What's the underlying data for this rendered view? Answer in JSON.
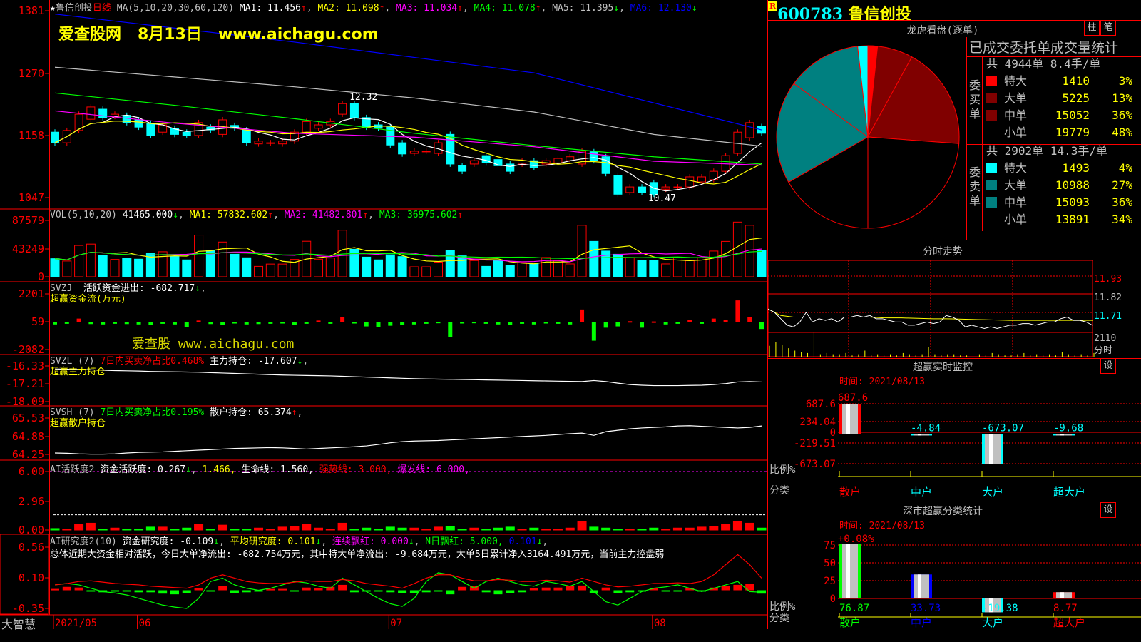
{
  "header": {
    "star": "★",
    "stock_name": "鲁信创投",
    "period": "日线",
    "ma_params": "MA(5,10,20,30,60,120)",
    "ma1": "MA1: 11.456",
    "ma2": "MA2: 11.098",
    "ma3": "MA3: 11.034",
    "ma4": "MA4: 11.078",
    "ma5": "MA5: 11.395",
    "ma6": "MA6: 12.130",
    "up": "↑",
    "down": "↓"
  },
  "watermark": {
    "site": "爱查股网",
    "date": "8月13日",
    "url": "www.aichagu.com",
    "site2": "爱查股",
    "url2": "www.aichagu.com"
  },
  "main_axis": {
    "ticks": [
      "1381",
      "1270",
      "1158",
      "1047"
    ],
    "ylim": [
      10.47,
      13.81
    ],
    "annot_high": "12.32",
    "annot_low": "10.47"
  },
  "candles": [
    [
      11.64,
      11.45
    ],
    [
      11.45,
      11.67
    ],
    [
      11.67,
      11.96
    ],
    [
      11.87,
      12.09
    ],
    [
      12.05,
      11.9
    ],
    [
      11.92,
      11.96
    ],
    [
      11.94,
      11.81
    ],
    [
      11.86,
      11.73
    ],
    [
      11.8,
      11.58
    ],
    [
      11.64,
      11.77
    ],
    [
      11.71,
      11.6
    ],
    [
      11.64,
      11.58
    ],
    [
      11.58,
      11.81
    ],
    [
      11.73,
      11.68
    ],
    [
      11.6,
      11.86
    ],
    [
      11.76,
      11.71
    ],
    [
      11.68,
      11.45
    ],
    [
      11.43,
      11.48
    ],
    [
      11.45,
      11.45
    ],
    [
      11.43,
      11.48
    ],
    [
      11.48,
      11.64
    ],
    [
      11.64,
      11.83
    ],
    [
      11.71,
      11.77
    ],
    [
      11.77,
      11.83
    ],
    [
      11.96,
      12.15
    ],
    [
      12.15,
      11.9
    ],
    [
      11.9,
      11.73
    ],
    [
      11.77,
      11.71
    ],
    [
      11.73,
      11.41
    ],
    [
      11.45,
      11.25
    ],
    [
      11.26,
      11.3
    ],
    [
      11.3,
      11.3
    ],
    [
      11.26,
      11.45
    ],
    [
      11.6,
      11.07
    ],
    [
      11.04,
      10.94
    ],
    [
      11.07,
      11.13
    ],
    [
      11.22,
      11.09
    ],
    [
      11.15,
      11.04
    ],
    [
      11.07,
      10.94
    ],
    [
      11.07,
      11.13
    ],
    [
      11.13,
      11.01
    ],
    [
      11.07,
      11.13
    ],
    [
      11.09,
      11.17
    ],
    [
      11.13,
      11.2
    ],
    [
      11.07,
      11.3
    ],
    [
      11.29,
      11.13
    ],
    [
      11.2,
      10.9
    ],
    [
      10.87,
      10.53
    ],
    [
      10.56,
      10.66
    ],
    [
      10.66,
      10.56
    ],
    [
      10.74,
      10.53
    ],
    [
      10.62,
      10.66
    ],
    [
      10.66,
      10.66
    ],
    [
      10.66,
      10.84
    ],
    [
      10.75,
      10.84
    ],
    [
      10.79,
      10.94
    ],
    [
      10.94,
      11.22
    ],
    [
      11.26,
      11.64
    ],
    [
      11.54,
      11.81
    ],
    [
      11.74,
      11.62
    ]
  ],
  "ma_lines": {
    "ma20": [
      [
        0,
        12.02
      ],
      [
        10,
        11.8
      ],
      [
        20,
        11.62
      ],
      [
        30,
        11.55
      ],
      [
        40,
        11.38
      ],
      [
        50,
        11.12
      ],
      [
        59,
        11.05
      ]
    ],
    "ma30": [
      [
        0,
        12.34
      ],
      [
        10,
        12.12
      ],
      [
        20,
        11.88
      ],
      [
        30,
        11.62
      ],
      [
        40,
        11.4
      ],
      [
        50,
        11.2
      ],
      [
        59,
        11.07
      ]
    ],
    "ma60": [
      [
        0,
        12.8
      ],
      [
        20,
        12.45
      ],
      [
        30,
        12.25
      ],
      [
        40,
        12.0
      ],
      [
        50,
        11.6
      ],
      [
        59,
        11.39
      ]
    ],
    "ma120": [
      [
        0,
        13.75
      ],
      [
        20,
        13.25
      ],
      [
        40,
        12.7
      ],
      [
        59,
        11.68
      ]
    ]
  },
  "colors": {
    "up": "#ff0000",
    "down": "#00ffff",
    "ma1": "#ffffff",
    "ma2": "#ffff00",
    "ma3": "#ff00ff",
    "ma4": "#00ff00",
    "ma5": "#c0c0c0",
    "ma6": "#0000ff",
    "grid": "#ff0000"
  },
  "volume": {
    "label": "VOL(5,10,20)",
    "value": "41465.000",
    "ma1": "MA1: 57832.602",
    "ma2": "MA2: 41482.801",
    "ma3": "MA3: 36975.602",
    "ticks": [
      "87579",
      "43249",
      "0"
    ],
    "ylim": [
      0,
      87579
    ],
    "values": [
      28100,
      24500,
      48700,
      50800,
      33500,
      27000,
      28800,
      27400,
      36000,
      38900,
      31700,
      26300,
      64800,
      40700,
      54000,
      35000,
      29600,
      16200,
      19800,
      19800,
      27000,
      55200,
      27400,
      29200,
      72400,
      42800,
      30600,
      26300,
      34200,
      31400,
      15500,
      15500,
      22700,
      40700,
      32500,
      25200,
      16200,
      25000,
      18000,
      22000,
      20000,
      30000,
      25000,
      20000,
      80000,
      55000,
      40000,
      35000,
      30000,
      25000,
      25000,
      20000,
      30000,
      25000,
      30000,
      40000,
      55000,
      85000,
      80000,
      41465
    ]
  },
  "svzj": {
    "label": "SVZJ",
    "desc": "活跃资金进出: -682.717",
    "sub": "超赢资金流(万元)",
    "ticks": [
      "2201",
      "59",
      "-2082"
    ],
    "ylim": [
      -2082,
      2201
    ],
    "values": [
      -150,
      -100,
      300,
      -120,
      -150,
      -100,
      -120,
      -150,
      -200,
      -100,
      -150,
      -350,
      150,
      -120,
      -200,
      -80,
      -150,
      -120,
      -100,
      -80,
      -200,
      -100,
      150,
      -100,
      400,
      -80,
      -300,
      -350,
      -250,
      -200,
      -150,
      -100,
      -60,
      -1100,
      -80,
      -60,
      -100,
      -150,
      -200,
      -100,
      -150,
      -80,
      -100,
      -150,
      1000,
      -1400,
      -400,
      -300,
      100,
      -400,
      80,
      -150,
      -100,
      200,
      -100,
      300,
      200,
      1700,
      400,
      -500
    ]
  },
  "svzl": {
    "label": "SVZL (7)",
    "ratio": "7日内买卖净占比0.468%",
    "hold": "主力持仓: -17.607",
    "sub": "超赢主力持仓",
    "ticks": [
      "-16.33",
      "-17.21",
      "-18.09"
    ],
    "ylim": [
      -18.09,
      -16.33
    ],
    "values": [
      -16.48,
      -16.49,
      -16.5,
      -16.52,
      -16.54,
      -16.56,
      -16.57,
      -16.58,
      -16.6,
      -16.61,
      -16.62,
      -16.63,
      -16.64,
      -16.66,
      -16.68,
      -16.7,
      -16.72,
      -16.74,
      -16.76,
      -16.78,
      -16.79,
      -16.8,
      -16.81,
      -16.82,
      -16.84,
      -16.86,
      -16.88,
      -16.9,
      -16.92,
      -16.94,
      -16.96,
      -16.97,
      -16.98,
      -16.99,
      -17.0,
      -17.01,
      -17.02,
      -17.03,
      -17.04,
      -17.05,
      -17.06,
      -17.07,
      -17.08,
      -17.09,
      -17.1,
      -17.05,
      -17.1,
      -17.18,
      -17.25,
      -17.28,
      -17.3,
      -17.3,
      -17.3,
      -17.29,
      -17.28,
      -17.25,
      -17.2,
      -17.12,
      -17.1,
      -17.12
    ]
  },
  "svsh": {
    "label": "SVSH (7)",
    "ratio": "7日内买卖净占比0.195%",
    "hold": "散户持仓: 65.374",
    "sub": "超赢散户持仓",
    "ticks": [
      "65.53",
      "64.88",
      "64.25"
    ],
    "ylim": [
      64.25,
      65.53
    ],
    "values": [
      64.3,
      64.29,
      64.27,
      64.26,
      64.26,
      64.27,
      64.3,
      64.32,
      64.33,
      64.34,
      64.36,
      64.38,
      64.4,
      64.42,
      64.44,
      64.46,
      64.47,
      64.48,
      64.49,
      64.48,
      64.46,
      64.44,
      64.46,
      64.48,
      64.5,
      64.52,
      64.55,
      64.6,
      64.66,
      64.7,
      64.72,
      64.73,
      64.74,
      64.76,
      64.78,
      64.8,
      64.82,
      64.84,
      64.86,
      64.88,
      64.9,
      64.92,
      64.95,
      64.98,
      65.0,
      64.92,
      65.05,
      65.1,
      65.15,
      65.18,
      65.2,
      65.22,
      65.25,
      65.26,
      65.24,
      65.22,
      65.2,
      65.18,
      65.2,
      65.25
    ]
  },
  "ai1": {
    "label": "AI活跃度2",
    "v1": "资金活跃度: 0.267",
    "v2": "1.466,",
    "v3": "生命线: 1.560,",
    "v4": "强势线: 3.000,",
    "v5": "爆发线: 6.000,",
    "ticks": [
      "6.00",
      "2.96",
      "0.00"
    ],
    "ylim": [
      0,
      6
    ],
    "lifeline": 1.56,
    "burst": 6.0,
    "values": [
      0.15,
      0.1,
      0.6,
      0.7,
      0.1,
      0.2,
      0.1,
      0.1,
      0.3,
      0.3,
      0.1,
      0.2,
      0.6,
      0.1,
      0.5,
      0.1,
      0.1,
      0.2,
      0.1,
      0.3,
      0.4,
      0.6,
      0.2,
      0.1,
      0.7,
      0.1,
      0.2,
      0.1,
      0.3,
      0.2,
      0.2,
      0.1,
      0.3,
      0.4,
      0.1,
      0.2,
      0.1,
      0.2,
      0.3,
      0.1,
      0.2,
      0.1,
      0.1,
      0.2,
      0.9,
      0.3,
      0.2,
      0.1,
      0.1,
      0.1,
      0.2,
      0.1,
      0.2,
      0.2,
      0.3,
      0.4,
      0.6,
      0.9,
      0.7,
      0.2
    ]
  },
  "ai2": {
    "label": "AI研究度2(10)",
    "v1": "资金研究度: -0.109",
    "v2": "平均研究度: 0.101",
    "v3": "连续飘红: 0.000",
    "v4": "N日飘红: 5.000,",
    "v5": "0.101",
    "summary": "总体近期大资金相对活跃，今日大单净流出: -682.754万元，其中特大单净流出: -9.684万元，大单5日累计净入3164.491万元，当前主力控盘弱",
    "ticks": [
      "0.56",
      "0.10",
      "-0.35"
    ],
    "ylim": [
      -0.35,
      0.56
    ],
    "base": -0.08,
    "bars": [
      0.02,
      0.05,
      0.04,
      -0.02,
      -0.03,
      -0.02,
      -0.02,
      -0.03,
      -0.03,
      -0.05,
      -0.06,
      -0.04,
      0.03,
      -0.02,
      0.06,
      -0.04,
      -0.03,
      -0.02,
      0.02,
      0.02,
      -0.02,
      0.04,
      0.03,
      0.05,
      0.08,
      -0.03,
      -0.02,
      -0.02,
      -0.03,
      -0.04,
      -0.04,
      -0.03,
      -0.02,
      -0.06,
      0.05,
      0.06,
      -0.03,
      -0.06,
      -0.04,
      -0.03,
      0.03,
      0.04,
      0.04,
      0.06,
      0.07,
      -0.04,
      0.04,
      -0.04,
      -0.03,
      -0.02,
      0.03,
      -0.02,
      -0.02,
      0.03,
      -0.02,
      0.04,
      0.06,
      0.08,
      0.09,
      -0.05
    ],
    "line_green": [
      0.0,
      0.02,
      0.0,
      -0.05,
      -0.1,
      -0.12,
      -0.15,
      -0.2,
      -0.25,
      -0.3,
      -0.33,
      -0.35,
      -0.2,
      0.05,
      0.1,
      0.0,
      -0.05,
      -0.08,
      -0.05,
      0.0,
      0.05,
      0.03,
      -0.02,
      -0.05,
      0.1,
      0.0,
      -0.1,
      -0.2,
      -0.28,
      -0.32,
      -0.2,
      0.05,
      0.18,
      0.15,
      0.05,
      -0.05,
      0.05,
      0.1,
      0.05,
      0.0,
      -0.02,
      0.05,
      0.02,
      -0.02,
      0.05,
      -0.1,
      -0.25,
      -0.3,
      -0.2,
      -0.1,
      -0.05,
      -0.03,
      0.0,
      -0.05,
      -0.1,
      -0.05,
      0.0,
      0.05,
      -0.1,
      -0.11
    ],
    "line_red": [
      0.0,
      0.02,
      0.05,
      0.06,
      0.04,
      0.02,
      0.01,
      0.0,
      -0.02,
      -0.03,
      -0.04,
      -0.05,
      0.0,
      0.1,
      0.15,
      0.1,
      0.05,
      0.03,
      0.02,
      0.02,
      0.04,
      0.06,
      0.05,
      0.05,
      0.08,
      0.06,
      0.02,
      0.0,
      -0.02,
      -0.05,
      0.02,
      0.1,
      0.15,
      0.15,
      0.1,
      0.06,
      0.06,
      0.08,
      0.07,
      0.05,
      0.05,
      0.07,
      0.06,
      0.04,
      0.1,
      0.05,
      0.0,
      -0.03,
      -0.02,
      0.0,
      0.02,
      0.02,
      0.03,
      0.02,
      0.05,
      0.15,
      0.3,
      0.45,
      0.3,
      0.1
    ]
  },
  "xaxis": {
    "brand": "大智慧",
    "dates": [
      "2021/05",
      "06",
      "07",
      "08"
    ],
    "date_index": [
      0,
      7,
      28,
      50
    ]
  },
  "right": {
    "badge": "R",
    "code": "600783",
    "name": "鲁信创投",
    "pie_title": "龙虎看盘(逐单)",
    "btn_bar": "柱",
    "btn_pen": "笔",
    "stat_title": "已成交委托单成交量统计",
    "buy_label": "委买单",
    "sell_label": "委卖单",
    "buy_summary": "共 4944单 8.4手/单",
    "sell_summary": "共 2902单 14.3手/单",
    "buy": [
      {
        "label": "特大",
        "value": "1410",
        "pct": "3%",
        "color": "#ff0000"
      },
      {
        "label": "大单",
        "value": "5225",
        "pct": "13%",
        "color": "#800000"
      },
      {
        "label": "中单",
        "value": "15052",
        "pct": "36%",
        "color": "#800000"
      },
      {
        "label": "小单",
        "value": "19779",
        "pct": "48%",
        "color": "#000000"
      }
    ],
    "sell": [
      {
        "label": "特大",
        "value": "1493",
        "pct": "4%",
        "color": "#00ffff"
      },
      {
        "label": "大单",
        "value": "10988",
        "pct": "27%",
        "color": "#008080"
      },
      {
        "label": "中单",
        "value": "15093",
        "pct": "36%",
        "color": "#008080"
      },
      {
        "label": "小单",
        "value": "13891",
        "pct": "34%",
        "color": "#000000"
      }
    ],
    "minute_title": "分时走势",
    "minute_ticks": [
      "11.93",
      "11.82",
      "11.71"
    ],
    "minute_vol_tick": "2110",
    "minute_vol_label": "分时",
    "minute_ylim": [
      11.6,
      11.93
    ],
    "minute_price": [
      11.74,
      11.72,
      11.68,
      11.64,
      11.63,
      11.66,
      11.72,
      11.66,
      11.68,
      11.67,
      11.68,
      11.66,
      11.69,
      11.69,
      11.7,
      11.69,
      11.7,
      11.68,
      11.68,
      11.67,
      11.66,
      11.66,
      11.64,
      11.64,
      11.65,
      11.66,
      11.65,
      11.66,
      11.7,
      11.69,
      11.67,
      11.63,
      11.64,
      11.63,
      11.62,
      11.63,
      11.62,
      11.63,
      11.64,
      11.64,
      11.65,
      11.65,
      11.64,
      11.65,
      11.66,
      11.66,
      11.68,
      11.69,
      11.67,
      11.67,
      11.66,
      11.64
    ],
    "minute_avg": [
      11.74,
      11.72,
      11.7,
      11.695,
      11.69,
      11.69,
      11.69,
      11.69,
      11.69,
      11.69,
      11.69,
      11.69,
      11.69,
      11.69,
      11.69,
      11.69,
      11.69,
      11.688,
      11.686,
      11.685,
      11.685,
      11.685,
      11.684,
      11.683,
      11.682,
      11.681,
      11.68,
      11.68,
      11.68,
      11.679,
      11.678,
      11.677,
      11.676,
      11.675,
      11.674,
      11.673,
      11.672,
      11.671,
      11.67,
      11.67,
      11.67,
      11.67,
      11.67,
      11.67,
      11.67,
      11.67,
      11.67,
      11.67,
      11.67,
      11.67,
      11.67,
      11.67
    ],
    "minute_vol": [
      9,
      12,
      10,
      7,
      5,
      4,
      3,
      20,
      2,
      3,
      2,
      2,
      3,
      1,
      2,
      5,
      1,
      2,
      1,
      2,
      1,
      3,
      2,
      1,
      2,
      8,
      2,
      1,
      2,
      2,
      1,
      1,
      9,
      2,
      1,
      3,
      2,
      1,
      1,
      2,
      3,
      1,
      2,
      1,
      2,
      1,
      4,
      2,
      1,
      2,
      1,
      3
    ],
    "monitor": {
      "title": "超赢实时监控",
      "time": "时间: 2021/08/13",
      "top": "687.6",
      "ticks": [
        "687.6",
        "234.04",
        "0",
        "-219.51",
        "-673.07"
      ],
      "ylim": [
        -673.07,
        687.6
      ],
      "ratio_label": "比例%",
      "cat_label": "分类",
      "btn": "设",
      "cats": [
        {
          "label": "散户",
          "value": 687.6,
          "text": "687.6",
          "color": "#ff0000"
        },
        {
          "label": "中户",
          "value": -4.84,
          "text": "-4.84",
          "color": "#00ffff"
        },
        {
          "label": "大户",
          "value": -673.07,
          "text": "-673.07",
          "color": "#00ffff"
        },
        {
          "label": "超大户",
          "value": -9.68,
          "text": "-9.68",
          "color": "#00ffff"
        }
      ]
    },
    "stats": {
      "title": "深市超赢分类统计",
      "time": "时间: 2021/08/13",
      "top": "+0.08%",
      "ticks": [
        "75",
        "50",
        "25",
        "0"
      ],
      "ylim": [
        0,
        75
      ],
      "ratio_label": "比例%",
      "cat_label": "分类",
      "btn": "设",
      "cats": [
        {
          "label": "散户",
          "value": 76.87,
          "text": "76.87",
          "color": "#00ff00"
        },
        {
          "label": "中户",
          "value": 33.73,
          "text": "33.73",
          "color": "#0000ff"
        },
        {
          "label": "大户",
          "value": -19.38,
          "text": "-19.38",
          "color": "#00ffff"
        },
        {
          "label": "超大户",
          "value": 8.77,
          "text": "8.77",
          "color": "#ff0000"
        }
      ]
    }
  }
}
